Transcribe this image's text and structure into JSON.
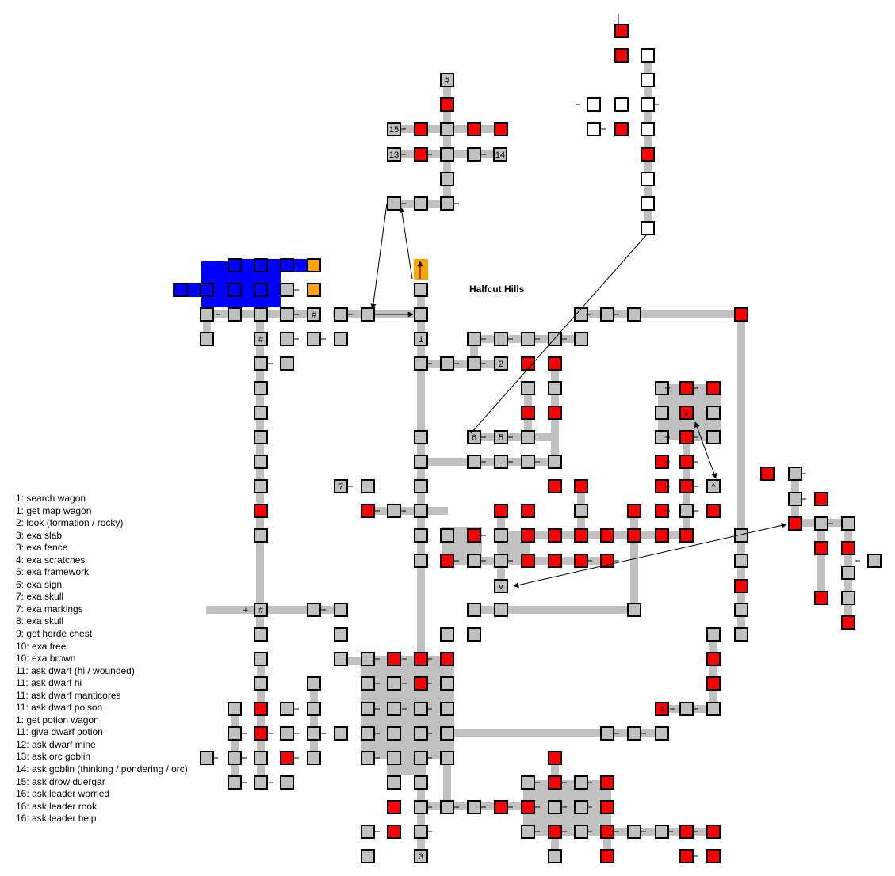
{
  "map": {
    "title": "Halfcut Hills",
    "colors": {
      "background": "#ffffff",
      "corridor": "#c0c0c0",
      "room": "#c0c0c0",
      "visited_room": "#ff0000",
      "unmapped_room": "#ffffff",
      "water": "#0000ff",
      "special_room": "#ffa500",
      "border": "#000000"
    },
    "room_labels": {
      "number_1": "1",
      "number_2": "2",
      "number_3": "3",
      "number_4": "4",
      "number_5": "5",
      "number_6": "6",
      "number_7": "7",
      "number_13": "13",
      "number_14": "14",
      "number_15": "15",
      "hash": "#",
      "up": "^",
      "down": "v",
      "plus": "+",
      "dash": "-"
    }
  },
  "legend": {
    "items": [
      "1: search wagon",
      "1: get map wagon",
      "2: look (formation / rocky)",
      "3: exa slab",
      "3: exa fence",
      "4: exa scratches",
      "5: exa framework",
      "6: exa sign",
      "7: exa skull",
      "7: exa markings",
      "8: exa skull",
      "9: get horde chest",
      "10: exa tree",
      "10: exa brown",
      "11: ask dwarf (hi / wounded)",
      "11: ask dwarf hi",
      "11: ask dwarf manticores",
      "11: ask dwarf poison",
      "1: get potion wagon",
      "11: give dwarf potion",
      "12: ask dwarf mine",
      "13: ask orc goblin",
      "14: ask goblin (thinking / pondering / orc)",
      "15: ask drow duergar",
      "16: ask leader worried",
      "16: ask leader rook",
      "16: ask leader help"
    ]
  }
}
